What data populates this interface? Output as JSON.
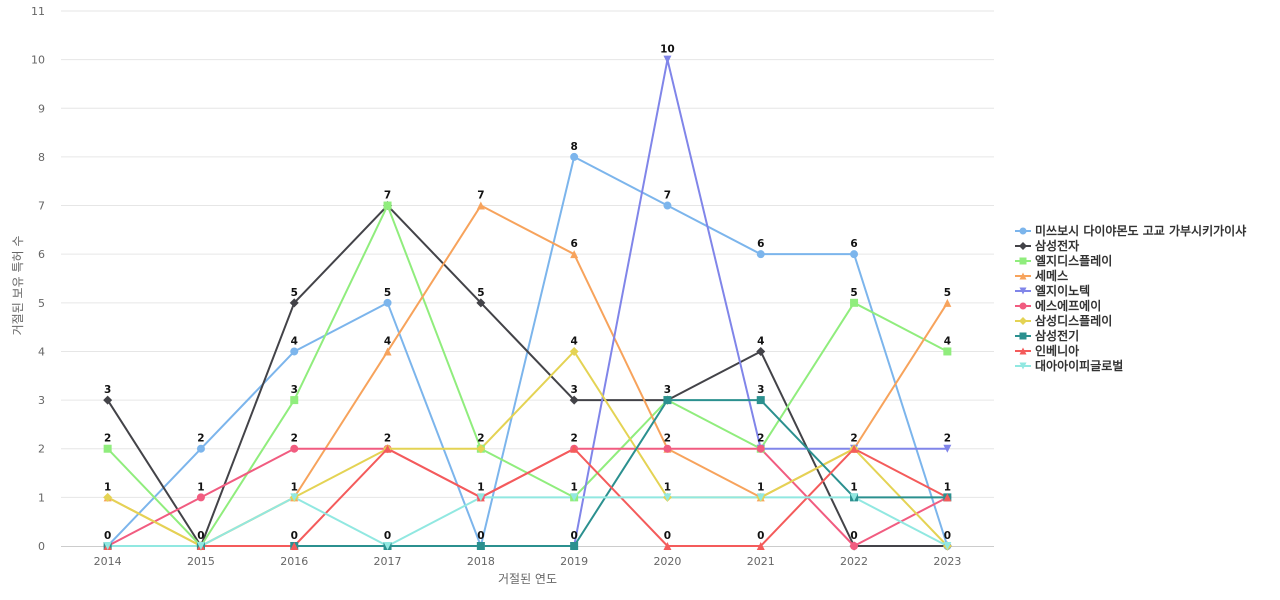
{
  "chart_data": {
    "type": "line",
    "title": "",
    "xlabel": "거절된 연도",
    "ylabel": "거절된 보유 특허 수",
    "x": [
      2014,
      2015,
      2016,
      2017,
      2018,
      2019,
      2020,
      2021,
      2022,
      2023
    ],
    "ylim": [
      0,
      11
    ],
    "yticks": [
      0,
      1,
      2,
      3,
      4,
      5,
      6,
      7,
      8,
      9,
      10,
      11
    ],
    "grid": true,
    "legend_position": "right",
    "series": [
      {
        "name": "미쓰보시 다이야몬도 고교 가부시키가이샤",
        "color": "#7cb5ec",
        "marker": "circle",
        "values": [
          0,
          2,
          4,
          5,
          0,
          8,
          7,
          6,
          6,
          0
        ]
      },
      {
        "name": "삼성전자",
        "color": "#434348",
        "marker": "diamond",
        "values": [
          3,
          0,
          5,
          7,
          5,
          3,
          3,
          4,
          0,
          0
        ]
      },
      {
        "name": "엘지디스플레이",
        "color": "#90ed7d",
        "marker": "square",
        "values": [
          2,
          0,
          3,
          7,
          2,
          1,
          3,
          2,
          5,
          4
        ]
      },
      {
        "name": "세메스",
        "color": "#f7a35c",
        "marker": "triangle",
        "values": [
          1,
          0,
          1,
          4,
          7,
          6,
          2,
          1,
          2,
          5
        ]
      },
      {
        "name": "엘지이노텍",
        "color": "#8085e9",
        "marker": "triangle-down",
        "values": [
          0,
          0,
          0,
          0,
          0,
          0,
          10,
          2,
          2,
          2
        ]
      },
      {
        "name": "에스에프에이",
        "color": "#f15c80",
        "marker": "circle",
        "values": [
          0,
          1,
          2,
          2,
          1,
          2,
          2,
          2,
          0,
          1
        ]
      },
      {
        "name": "삼성디스플레이",
        "color": "#e4d354",
        "marker": "diamond",
        "values": [
          1,
          0,
          1,
          2,
          2,
          4,
          1,
          1,
          2,
          0
        ]
      },
      {
        "name": "삼성전기",
        "color": "#2b908f",
        "marker": "square",
        "values": [
          0,
          0,
          0,
          0,
          0,
          0,
          3,
          3,
          1,
          1
        ]
      },
      {
        "name": "인베니아",
        "color": "#f45b5b",
        "marker": "triangle",
        "values": [
          0,
          0,
          0,
          2,
          1,
          2,
          0,
          0,
          2,
          1
        ]
      },
      {
        "name": "대아아이피글로벌",
        "color": "#91e8e1",
        "marker": "triangle-down",
        "values": [
          0,
          0,
          1,
          0,
          1,
          1,
          1,
          1,
          1,
          0
        ]
      }
    ],
    "data_label_series_by_x": [
      1,
      0,
      1,
      1,
      1,
      0,
      4,
      1,
      0,
      3
    ]
  }
}
